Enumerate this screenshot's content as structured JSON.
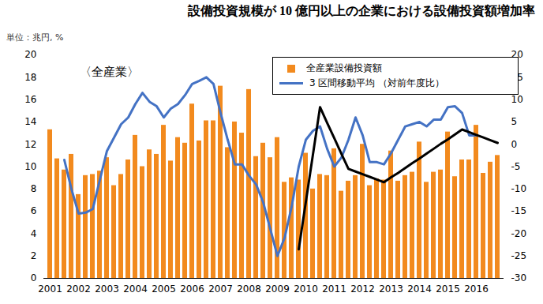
{
  "chart_data": {
    "type": "bar",
    "title": "設備投資規模が 10 億円以上の企業における設備投資額増加率",
    "ylabel": "単位：兆円, %",
    "annotations": [
      "〈全産業〉"
    ],
    "categories": [
      "2001",
      null,
      null,
      null,
      "2002",
      null,
      null,
      null,
      "2003",
      null,
      null,
      null,
      "2004",
      null,
      null,
      null,
      "2005",
      null,
      null,
      null,
      "2006",
      null,
      null,
      null,
      "2007",
      null,
      null,
      null,
      "2008",
      null,
      null,
      null,
      "2009",
      null,
      null,
      null,
      "2010",
      null,
      null,
      null,
      "2011",
      null,
      null,
      null,
      "2012",
      null,
      null,
      null,
      "2013",
      null,
      null,
      null,
      "2014",
      null,
      null,
      null,
      "2015",
      null,
      null,
      null,
      "2016",
      null,
      null,
      null
    ],
    "series": [
      {
        "name": "全産業設備投資額",
        "type": "bar",
        "color": "#f28a1e",
        "values": [
          13.3,
          10.7,
          9.7,
          11.1,
          7.5,
          9.2,
          9.3,
          9.6,
          10.8,
          8.3,
          9.3,
          10.6,
          12.8,
          10.0,
          11.5,
          11.1,
          13.7,
          10.5,
          12.6,
          12.1,
          15.6,
          12.3,
          14.1,
          14.1,
          17.2,
          11.7,
          14.0,
          13.0,
          16.9,
          10.9,
          12.1,
          10.8,
          12.6,
          8.6,
          9.0,
          8.8,
          11.2,
          8.0,
          9.3,
          9.2,
          11.6,
          7.8,
          8.7,
          9.2,
          12.0,
          8.3,
          8.9,
          8.8,
          11.4,
          8.7,
          9.2,
          9.5,
          12.2,
          8.6,
          9.5,
          9.7,
          13.1,
          9.1,
          10.6,
          10.6,
          13.7,
          9.4,
          10.4,
          11.0
        ]
      },
      {
        "name": "3 区間移動平均 （対前年度比）",
        "type": "line",
        "color": "#4472c4",
        "axis": "y2",
        "values": [
          null,
          null,
          -3.5,
          -10,
          -15.5,
          -15.3,
          -14.5,
          -8,
          -1.5,
          1.5,
          4.5,
          6,
          9,
          11.5,
          9.5,
          8.5,
          6,
          8,
          9,
          11,
          13.5,
          14.2,
          15,
          13.5,
          7,
          1,
          -4.5,
          -4.5,
          -7,
          -9,
          -13,
          -19,
          -25,
          -21,
          -14,
          -5,
          1,
          3,
          4,
          -1,
          -5,
          -3,
          1,
          6,
          2,
          -4,
          -4,
          -4.5,
          -2,
          1,
          4,
          4.5,
          5,
          4,
          5.5,
          5.5,
          8.3,
          8.5,
          7,
          2,
          2,
          null,
          null,
          null
        ]
      },
      {
        "name": "設備投資規模が 10 億円以上の企業における設備投資額増加率",
        "type": "line",
        "color": "#000000",
        "axis": "y2",
        "values": [
          null,
          null,
          null,
          null,
          null,
          null,
          null,
          null,
          null,
          null,
          null,
          null,
          null,
          null,
          null,
          null,
          null,
          null,
          null,
          null,
          null,
          null,
          null,
          null,
          null,
          null,
          null,
          null,
          null,
          null,
          null,
          null,
          null,
          null,
          null,
          -23.5,
          -12.9,
          -2.3,
          8.3,
          4.8,
          1.4,
          -2.1,
          -5.5,
          -6.1,
          -6.7,
          -7.3,
          -7.9,
          -8.5,
          -7.4,
          -6.4,
          -5.3,
          -4.2,
          -3.2,
          -2.1,
          -1.0,
          0.1,
          1.1,
          2.2,
          3.3,
          2.7,
          2.1,
          1.5,
          0.9,
          0.3
        ]
      }
    ],
    "ylim": [
      0,
      20
    ],
    "yticks": [
      0,
      2,
      4,
      6,
      8,
      10,
      12,
      14,
      16,
      18,
      20
    ],
    "y2lim": [
      -30,
      20
    ],
    "y2ticks": [
      -30,
      -25,
      -20,
      -15,
      -10,
      -5,
      0,
      5,
      10,
      15,
      20
    ],
    "legend": "top-right",
    "grid": false
  }
}
